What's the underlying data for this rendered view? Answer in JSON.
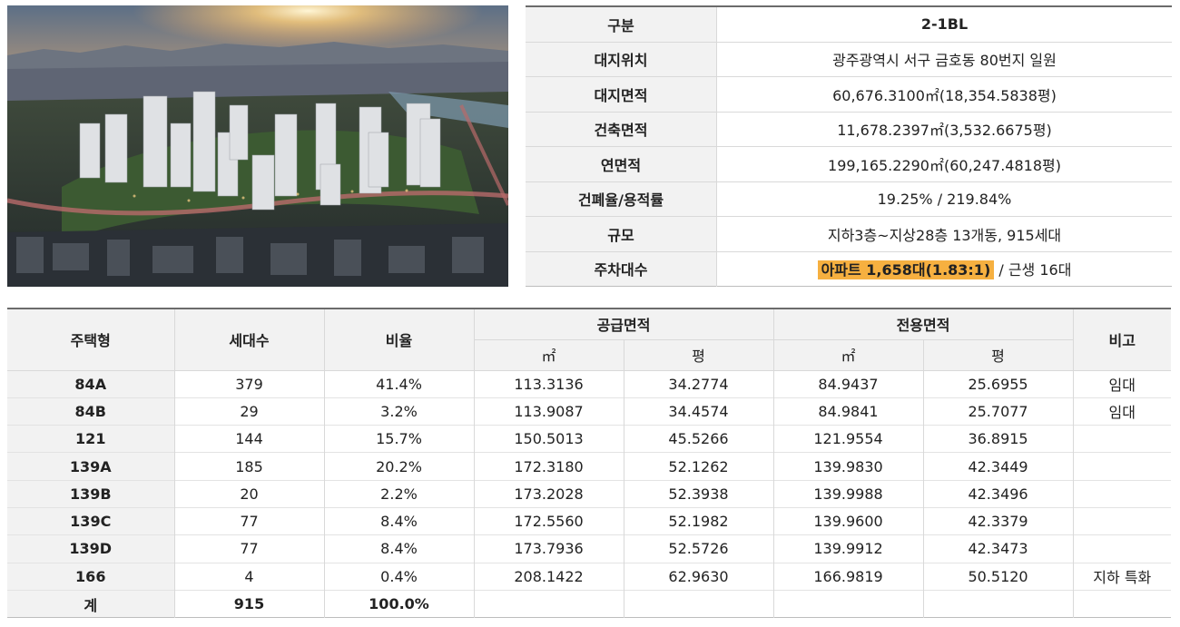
{
  "image": {
    "caption": ""
  },
  "info": {
    "rows": [
      {
        "label": "구분",
        "value": "2-1BL"
      },
      {
        "label": "대지위치",
        "value": "광주광역시 서구 금호동 80번지 일원"
      },
      {
        "label": "대지면적",
        "value": "60,676.3100㎡(18,354.5838평)"
      },
      {
        "label": "건축면적",
        "value": "11,678.2397㎡(3,532.6675평)"
      },
      {
        "label": "연면적",
        "value": "199,165.2290㎡(60,247.4818평)"
      },
      {
        "label": "건폐율/용적률",
        "value": "19.25% / 219.84%"
      },
      {
        "label": "규모",
        "value": "지하3층~지상28층 13개동, 915세대"
      },
      {
        "label": "주차대수",
        "value_highlight": "아파트 1,658대(1.83:1)",
        "value_rest": " / 근생 16대"
      }
    ]
  },
  "units": {
    "headers": {
      "type": "주택형",
      "households": "세대수",
      "ratio": "비율",
      "supply": "공급면적",
      "exclusive": "전용면적",
      "note": "비고",
      "sqm": "㎡",
      "pyeong": "평"
    },
    "rows": [
      {
        "type": "84A",
        "households": "379",
        "ratio": "41.4%",
        "supply_sqm": "113.3136",
        "supply_py": "34.2774",
        "excl_sqm": "84.9437",
        "excl_py": "25.6955",
        "note": "임대"
      },
      {
        "type": "84B",
        "households": "29",
        "ratio": "3.2%",
        "supply_sqm": "113.9087",
        "supply_py": "34.4574",
        "excl_sqm": "84.9841",
        "excl_py": "25.7077",
        "note": "임대"
      },
      {
        "type": "121",
        "households": "144",
        "ratio": "15.7%",
        "supply_sqm": "150.5013",
        "supply_py": "45.5266",
        "excl_sqm": "121.9554",
        "excl_py": "36.8915",
        "note": ""
      },
      {
        "type": "139A",
        "households": "185",
        "ratio": "20.2%",
        "supply_sqm": "172.3180",
        "supply_py": "52.1262",
        "excl_sqm": "139.9830",
        "excl_py": "42.3449",
        "note": ""
      },
      {
        "type": "139B",
        "households": "20",
        "ratio": "2.2%",
        "supply_sqm": "173.2028",
        "supply_py": "52.3938",
        "excl_sqm": "139.9988",
        "excl_py": "42.3496",
        "note": ""
      },
      {
        "type": "139C",
        "households": "77",
        "ratio": "8.4%",
        "supply_sqm": "172.5560",
        "supply_py": "52.1982",
        "excl_sqm": "139.9600",
        "excl_py": "42.3379",
        "note": ""
      },
      {
        "type": "139D",
        "households": "77",
        "ratio": "8.4%",
        "supply_sqm": "173.7936",
        "supply_py": "52.5726",
        "excl_sqm": "139.9912",
        "excl_py": "42.3473",
        "note": ""
      },
      {
        "type": "166",
        "households": "4",
        "ratio": "0.4%",
        "supply_sqm": "208.1422",
        "supply_py": "62.9630",
        "excl_sqm": "166.9819",
        "excl_py": "50.5120",
        "note": "지하 특화"
      }
    ],
    "total": {
      "type": "계",
      "households": "915",
      "ratio": "100.0%"
    }
  }
}
